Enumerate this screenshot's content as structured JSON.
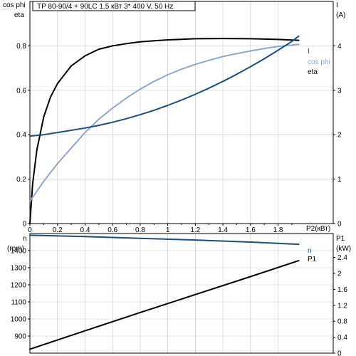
{
  "title": "TP 80-90/4 + 90LC    1.5 кВт   3* 400 V, 50 Hz",
  "colors": {
    "eta": "#000000",
    "cos_phi": "#8fa8c8",
    "current": "#1f4e79",
    "speed": "#1f4e79",
    "p1": "#000000",
    "grid": "#c8c8c8"
  },
  "chart_data": [
    {
      "type": "line",
      "left_axis_labels": [
        "cos phi",
        "eta"
      ],
      "right_axis_label": "I",
      "right_axis_unit": "(A)",
      "xlabel": "P2(кВт)",
      "xlim": [
        0,
        2.2
      ],
      "ylim": [
        0,
        1.0
      ],
      "y2lim": [
        0,
        5
      ],
      "grid": true,
      "x_ticks": [
        "0",
        "0.2",
        "0.4",
        "0.6",
        "0.8",
        "1",
        "1.2",
        "1.4",
        "1.6",
        "1.8"
      ],
      "y_ticks": [
        "0",
        "0.2",
        "0.4",
        "0.6",
        "0.8"
      ],
      "y2_ticks": [
        "0",
        "1",
        "2",
        "3",
        "4"
      ],
      "series": [
        {
          "name": "eta",
          "axis": "left",
          "color": "#000000",
          "x": [
            0.0,
            0.02,
            0.05,
            0.1,
            0.15,
            0.2,
            0.3,
            0.4,
            0.5,
            0.6,
            0.7,
            0.8,
            0.9,
            1.0,
            1.2,
            1.4,
            1.6,
            1.8,
            1.95
          ],
          "y": [
            0.0,
            0.18,
            0.33,
            0.48,
            0.57,
            0.63,
            0.71,
            0.755,
            0.785,
            0.8,
            0.81,
            0.818,
            0.823,
            0.827,
            0.832,
            0.833,
            0.832,
            0.829,
            0.825
          ]
        },
        {
          "name": "cos phi",
          "axis": "left",
          "color": "#8fa8c8",
          "x": [
            0.0,
            0.1,
            0.2,
            0.3,
            0.4,
            0.5,
            0.6,
            0.7,
            0.8,
            0.9,
            1.0,
            1.1,
            1.2,
            1.3,
            1.4,
            1.5,
            1.6,
            1.7,
            1.8,
            1.9,
            1.95
          ],
          "y": [
            0.1,
            0.19,
            0.27,
            0.34,
            0.41,
            0.47,
            0.52,
            0.565,
            0.605,
            0.64,
            0.67,
            0.695,
            0.717,
            0.735,
            0.752,
            0.765,
            0.777,
            0.788,
            0.797,
            0.804,
            0.807
          ]
        },
        {
          "name": "I",
          "axis": "right",
          "color": "#1f4e79",
          "x": [
            0.0,
            0.1,
            0.2,
            0.3,
            0.4,
            0.5,
            0.6,
            0.7,
            0.8,
            0.9,
            1.0,
            1.1,
            1.2,
            1.3,
            1.4,
            1.5,
            1.6,
            1.7,
            1.8,
            1.9,
            1.95
          ],
          "y": [
            1.97,
            2.0,
            2.05,
            2.1,
            2.15,
            2.21,
            2.28,
            2.36,
            2.45,
            2.55,
            2.66,
            2.78,
            2.91,
            3.05,
            3.2,
            3.36,
            3.53,
            3.71,
            3.9,
            4.1,
            4.22
          ]
        }
      ],
      "series_labels": [
        "I",
        "cos phi",
        "eta"
      ]
    },
    {
      "type": "line",
      "left_axis_label": "n",
      "left_axis_unit": "(rpm)",
      "right_axis_label": "P1",
      "right_axis_unit": "(kW)",
      "xlim": [
        0,
        2.2
      ],
      "ylim": [
        800,
        1500
      ],
      "y2lim": [
        0,
        3.0
      ],
      "grid": true,
      "y_ticks": [
        "900",
        "1000",
        "1100",
        "1200",
        "1300",
        "1400"
      ],
      "y2_ticks": [
        "0",
        "0.4",
        "0.8",
        "1.2",
        "1.6",
        "2",
        "2.4"
      ],
      "series": [
        {
          "name": "n",
          "axis": "left",
          "color": "#1f4e79",
          "x": [
            0.0,
            0.4,
            0.8,
            1.2,
            1.6,
            1.95
          ],
          "y": [
            1490,
            1482,
            1472,
            1462,
            1450,
            1437
          ]
        },
        {
          "name": "P1",
          "axis": "right",
          "color": "#000000",
          "x": [
            0.0,
            0.4,
            0.8,
            1.2,
            1.6,
            1.95
          ],
          "y": [
            0.1,
            0.56,
            1.02,
            1.47,
            1.92,
            2.32
          ]
        }
      ],
      "series_labels": [
        "n",
        "P1"
      ]
    }
  ]
}
